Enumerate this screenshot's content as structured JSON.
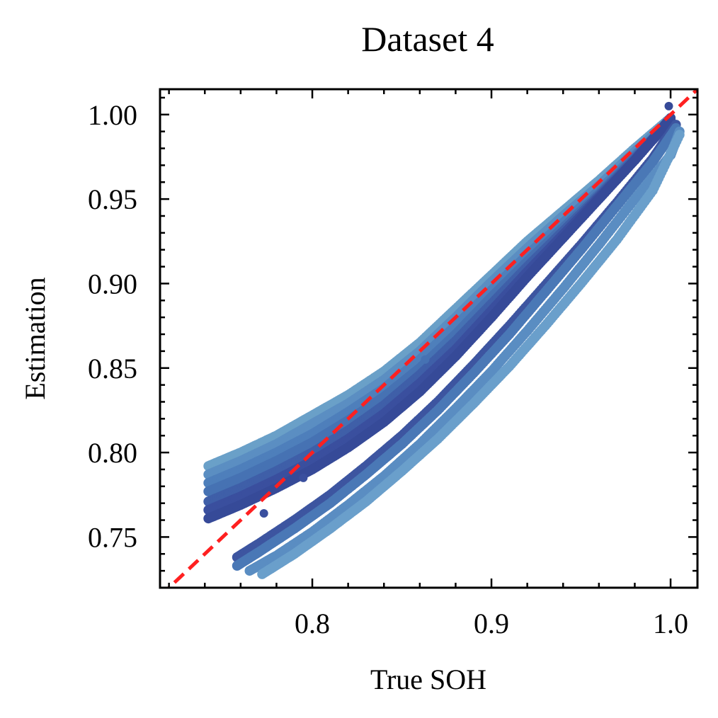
{
  "chart_data": {
    "type": "scatter",
    "title": "Dataset 4",
    "xlabel": "True SOH",
    "ylabel": "Estimation",
    "xlim": [
      0.715,
      1.015
    ],
    "ylim": [
      0.72,
      1.015
    ],
    "xticks": [
      {
        "value": 0.8,
        "label": "0.8"
      },
      {
        "value": 0.9,
        "label": "0.9"
      },
      {
        "value": 1.0,
        "label": "1.0"
      }
    ],
    "yticks": [
      {
        "value": 0.75,
        "label": "0.75"
      },
      {
        "value": 0.8,
        "label": "0.80"
      },
      {
        "value": 0.85,
        "label": "0.85"
      },
      {
        "value": 0.9,
        "label": "0.90"
      },
      {
        "value": 0.95,
        "label": "0.95"
      },
      {
        "value": 1.0,
        "label": "1.00"
      }
    ],
    "minor_ticks": true,
    "ticks_direction": "in",
    "ticks_all_sides": true,
    "grid": false,
    "legend": "none",
    "reference_line": {
      "style": "dashed",
      "color": "#ff2020",
      "from": [
        0.715,
        0.715
      ],
      "to": [
        1.015,
        1.015
      ]
    },
    "series": [
      {
        "color": "#6aa0c8",
        "points": [
          [
            0.742,
            0.792
          ],
          [
            0.76,
            0.8
          ],
          [
            0.78,
            0.81
          ],
          [
            0.8,
            0.822
          ],
          [
            0.82,
            0.834
          ],
          [
            0.84,
            0.848
          ],
          [
            0.86,
            0.865
          ],
          [
            0.88,
            0.885
          ],
          [
            0.9,
            0.905
          ],
          [
            0.92,
            0.925
          ],
          [
            0.94,
            0.943
          ],
          [
            0.96,
            0.961
          ],
          [
            0.98,
            0.98
          ],
          [
            1.0,
            0.998
          ]
        ]
      },
      {
        "color": "#5b8ec2",
        "points": [
          [
            0.742,
            0.787
          ],
          [
            0.76,
            0.795
          ],
          [
            0.78,
            0.805
          ],
          [
            0.8,
            0.817
          ],
          [
            0.82,
            0.829
          ],
          [
            0.84,
            0.843
          ],
          [
            0.86,
            0.86
          ],
          [
            0.88,
            0.88
          ],
          [
            0.9,
            0.901
          ],
          [
            0.92,
            0.921
          ],
          [
            0.94,
            0.94
          ],
          [
            0.96,
            0.958
          ],
          [
            0.98,
            0.978
          ],
          [
            1.0,
            0.997
          ]
        ]
      },
      {
        "color": "#4e7fbb",
        "points": [
          [
            0.742,
            0.782
          ],
          [
            0.76,
            0.79
          ],
          [
            0.78,
            0.8
          ],
          [
            0.8,
            0.811
          ],
          [
            0.82,
            0.824
          ],
          [
            0.84,
            0.838
          ],
          [
            0.86,
            0.855
          ],
          [
            0.88,
            0.875
          ],
          [
            0.9,
            0.896
          ],
          [
            0.92,
            0.917
          ],
          [
            0.94,
            0.936
          ],
          [
            0.96,
            0.955
          ],
          [
            0.98,
            0.976
          ],
          [
            1.0,
            0.996
          ]
        ]
      },
      {
        "color": "#4672b3",
        "points": [
          [
            0.742,
            0.777
          ],
          [
            0.76,
            0.785
          ],
          [
            0.78,
            0.795
          ],
          [
            0.8,
            0.806
          ],
          [
            0.82,
            0.819
          ],
          [
            0.84,
            0.833
          ],
          [
            0.86,
            0.85
          ],
          [
            0.88,
            0.87
          ],
          [
            0.9,
            0.892
          ],
          [
            0.92,
            0.913
          ],
          [
            0.94,
            0.933
          ],
          [
            0.96,
            0.953
          ],
          [
            0.98,
            0.975
          ],
          [
            1.0,
            0.996
          ]
        ]
      },
      {
        "color": "#3f5fa8",
        "points": [
          [
            0.742,
            0.771
          ],
          [
            0.76,
            0.779
          ],
          [
            0.78,
            0.789
          ],
          [
            0.8,
            0.8
          ],
          [
            0.82,
            0.813
          ],
          [
            0.84,
            0.828
          ],
          [
            0.86,
            0.846
          ],
          [
            0.88,
            0.866
          ],
          [
            0.9,
            0.888
          ],
          [
            0.92,
            0.91
          ],
          [
            0.94,
            0.931
          ],
          [
            0.96,
            0.952
          ],
          [
            0.98,
            0.974
          ],
          [
            1.0,
            0.996
          ]
        ]
      },
      {
        "color": "#3a4f9e",
        "points": [
          [
            0.742,
            0.766
          ],
          [
            0.76,
            0.774
          ],
          [
            0.78,
            0.784
          ],
          [
            0.8,
            0.795
          ],
          [
            0.82,
            0.808
          ],
          [
            0.84,
            0.823
          ],
          [
            0.86,
            0.841
          ],
          [
            0.88,
            0.861
          ],
          [
            0.9,
            0.884
          ],
          [
            0.92,
            0.907
          ],
          [
            0.94,
            0.929
          ],
          [
            0.96,
            0.951
          ],
          [
            0.98,
            0.973
          ],
          [
            1.0,
            0.997
          ]
        ]
      },
      {
        "color": "#364a98",
        "points": [
          [
            0.742,
            0.761
          ],
          [
            0.76,
            0.769
          ],
          [
            0.78,
            0.779
          ],
          [
            0.8,
            0.79
          ],
          [
            0.82,
            0.803
          ],
          [
            0.84,
            0.818
          ],
          [
            0.86,
            0.836
          ],
          [
            0.88,
            0.857
          ],
          [
            0.9,
            0.88
          ],
          [
            0.92,
            0.904
          ],
          [
            0.94,
            0.927
          ],
          [
            0.96,
            0.95
          ],
          [
            0.98,
            0.973
          ],
          [
            1.0,
            0.998
          ]
        ]
      },
      {
        "color": "#3d55a0",
        "points": [
          [
            0.758,
            0.738
          ],
          [
            0.77,
            0.746
          ],
          [
            0.79,
            0.76
          ],
          [
            0.81,
            0.775
          ],
          [
            0.83,
            0.792
          ],
          [
            0.85,
            0.81
          ],
          [
            0.87,
            0.83
          ],
          [
            0.89,
            0.852
          ],
          [
            0.91,
            0.875
          ],
          [
            0.93,
            0.899
          ],
          [
            0.95,
            0.923
          ],
          [
            0.97,
            0.948
          ],
          [
            0.99,
            0.974
          ],
          [
            1.003,
            0.994
          ]
        ]
      },
      {
        "color": "#4a78b6",
        "points": [
          [
            0.758,
            0.733
          ],
          [
            0.77,
            0.741
          ],
          [
            0.79,
            0.755
          ],
          [
            0.81,
            0.77
          ],
          [
            0.83,
            0.787
          ],
          [
            0.85,
            0.805
          ],
          [
            0.87,
            0.825
          ],
          [
            0.89,
            0.847
          ],
          [
            0.91,
            0.87
          ],
          [
            0.93,
            0.895
          ],
          [
            0.95,
            0.92
          ],
          [
            0.97,
            0.946
          ],
          [
            0.99,
            0.972
          ],
          [
            1.003,
            0.992
          ]
        ]
      },
      {
        "color": "#5a8dc2",
        "points": [
          [
            0.765,
            0.73
          ],
          [
            0.78,
            0.739
          ],
          [
            0.8,
            0.753
          ],
          [
            0.82,
            0.769
          ],
          [
            0.84,
            0.786
          ],
          [
            0.86,
            0.805
          ],
          [
            0.88,
            0.826
          ],
          [
            0.9,
            0.848
          ],
          [
            0.92,
            0.872
          ],
          [
            0.94,
            0.897
          ],
          [
            0.96,
            0.923
          ],
          [
            0.98,
            0.95
          ],
          [
            1.0,
            0.976
          ],
          [
            1.005,
            0.99
          ]
        ]
      },
      {
        "color": "#6a9fcb",
        "points": [
          [
            0.772,
            0.728
          ],
          [
            0.79,
            0.74
          ],
          [
            0.81,
            0.755
          ],
          [
            0.83,
            0.771
          ],
          [
            0.85,
            0.789
          ],
          [
            0.87,
            0.808
          ],
          [
            0.89,
            0.829
          ],
          [
            0.91,
            0.851
          ],
          [
            0.93,
            0.875
          ],
          [
            0.95,
            0.9
          ],
          [
            0.97,
            0.926
          ],
          [
            0.99,
            0.955
          ],
          [
            1.005,
            0.988
          ]
        ]
      }
    ],
    "outliers": [
      {
        "x": 0.773,
        "y": 0.764,
        "color": "#3a4f9e"
      },
      {
        "x": 0.795,
        "y": 0.785,
        "color": "#3a4f9e"
      },
      {
        "x": 0.863,
        "y": 0.855,
        "color": "#4672b3"
      },
      {
        "x": 0.999,
        "y": 1.005,
        "color": "#364a98"
      }
    ]
  }
}
